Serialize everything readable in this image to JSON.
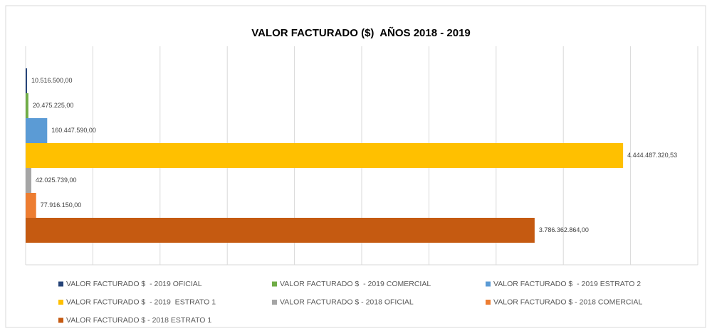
{
  "chart_data": {
    "type": "barh",
    "title": "VALOR FACTURADO ($)  AÑOS 2018 - 2019",
    "categories": [
      null
    ],
    "series": [
      {
        "name": "VALOR FACTURADO $  - 2019 OFICIAL",
        "color": "#264478",
        "values": [
          10516500.0
        ],
        "value_labels": [
          "10.516.500,00"
        ]
      },
      {
        "name": "VALOR FACTURADO $  - 2019 COMERCIAL",
        "color": "#70ad47",
        "values": [
          20475225.0
        ],
        "value_labels": [
          "20.475.225,00"
        ]
      },
      {
        "name": "VALOR FACTURADO $  - 2019 ESTRATO 2",
        "color": "#5b9bd5",
        "values": [
          160447590.0
        ],
        "value_labels": [
          "160.447.590,00"
        ]
      },
      {
        "name": "VALOR FACTURADO $  - 2019  ESTRATO 1",
        "color": "#ffc000",
        "values": [
          4444487320.53
        ],
        "value_labels": [
          "4.444.487.320,53"
        ]
      },
      {
        "name": "VALOR FACTURADO $ - 2018 OFICIAL",
        "color": "#a5a5a5",
        "values": [
          42025739.0
        ],
        "value_labels": [
          "42.025.739,00"
        ]
      },
      {
        "name": "VALOR FACTURADO $ - 2018 COMERCIAL",
        "color": "#ed7d31",
        "values": [
          77916150.0
        ],
        "value_labels": [
          "77.916.150,00"
        ]
      },
      {
        "name": "VALOR FACTURADO $ - 2018 ESTRATO 1",
        "color": "#c55a11",
        "values": [
          3786362864.0
        ],
        "value_labels": [
          "3.786.362.864,00"
        ]
      }
    ],
    "xlim": [
      0,
      5000000000
    ],
    "xticks": [
      0,
      500000000,
      1000000000,
      1500000000,
      2000000000,
      2500000000,
      3000000000,
      3500000000,
      4000000000,
      4500000000,
      5000000000
    ],
    "grid": true,
    "legend": "bottom"
  }
}
